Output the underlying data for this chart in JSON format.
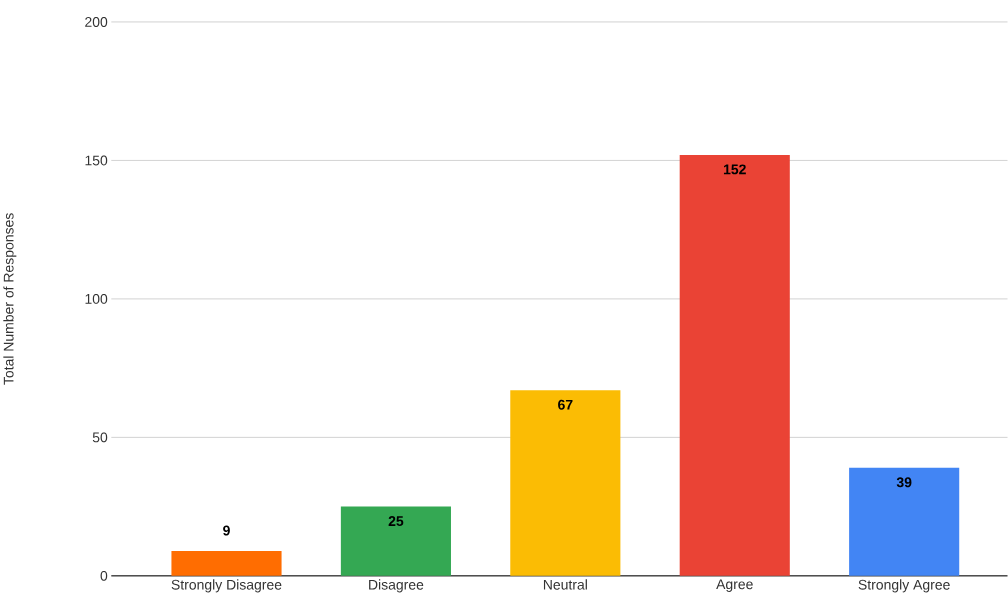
{
  "chart_data": {
    "type": "bar",
    "ylabel": "Total Number of Responses",
    "categories": [
      "Strongly Disagree",
      "Disagree",
      "Neutral",
      "Agree",
      "Strongly Agree"
    ],
    "values": [
      9,
      25,
      67,
      152,
      39
    ],
    "colors": [
      "#ff6d01",
      "#34a853",
      "#fbbc04",
      "#ea4335",
      "#4285f4"
    ],
    "ylim": [
      0,
      200
    ],
    "yticks": [
      0,
      50,
      100,
      150,
      200
    ],
    "grid": "y",
    "data_labels": true
  }
}
